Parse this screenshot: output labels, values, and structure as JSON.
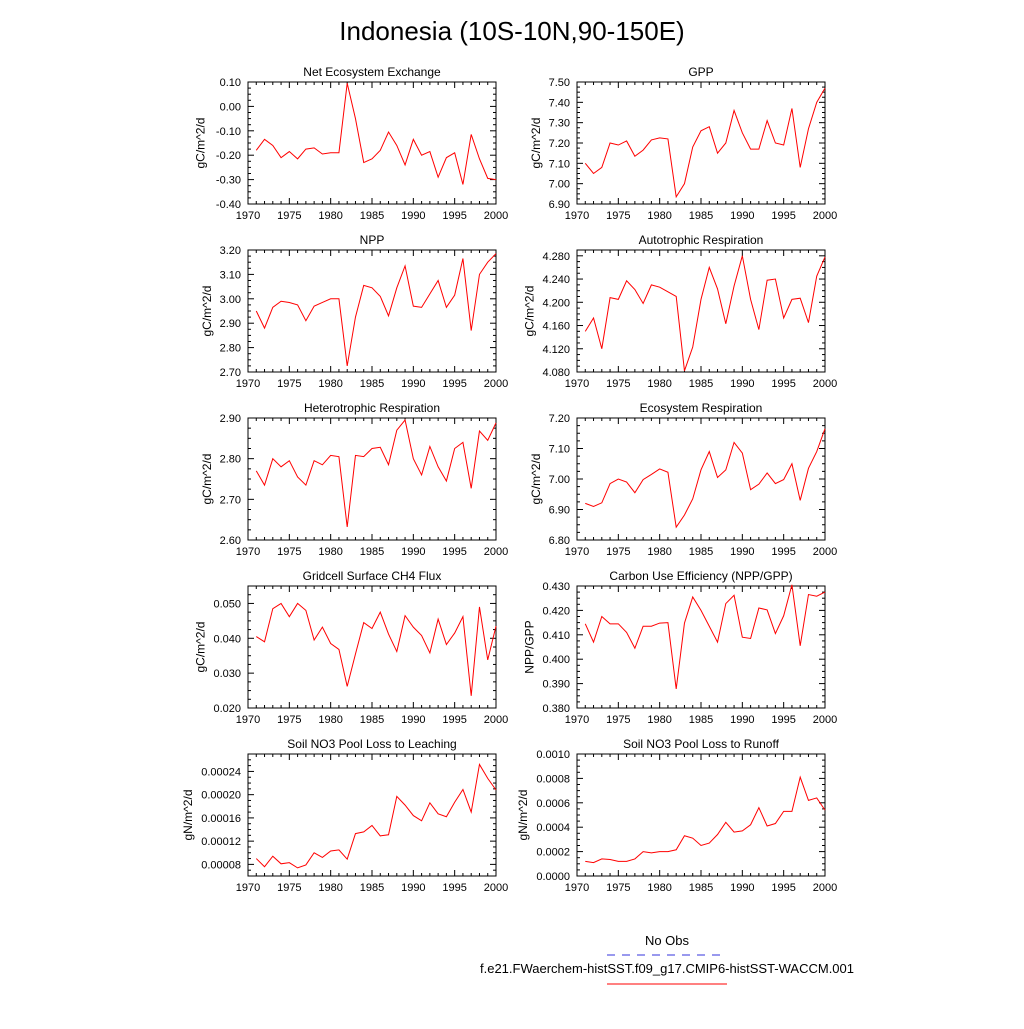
{
  "title": "Indonesia (10S-10N,90-150E)",
  "line_color": "#ff0000",
  "legend": {
    "entries": [
      {
        "label": "No Obs",
        "color": "#3333dd",
        "dashed": true
      },
      {
        "label": "f.e21.FWaerchem-histSST.f09_g17.CMIP6-histSST-WACCM.001",
        "color": "#ff0000",
        "dashed": false
      }
    ]
  },
  "chart_data": [
    {
      "type": "line",
      "title": "Net Ecosystem Exchange",
      "ylabel": "gC/m^2/d",
      "xlim": [
        1970,
        2000
      ],
      "xticks": [
        1970,
        1975,
        1980,
        1985,
        1990,
        1995,
        2000
      ],
      "ylim": [
        -0.4,
        0.1
      ],
      "yticks": [
        "-0.40",
        "-0.30",
        "-0.20",
        "-0.10",
        "0.00",
        "0.10"
      ],
      "x": [
        1971,
        1972,
        1973,
        1974,
        1975,
        1976,
        1977,
        1978,
        1979,
        1980,
        1981,
        1982,
        1983,
        1984,
        1985,
        1986,
        1987,
        1988,
        1989,
        1990,
        1991,
        1992,
        1993,
        1994,
        1995,
        1996,
        1997,
        1998,
        1999,
        2000
      ],
      "series": [
        {
          "values": [
            -0.18,
            -0.135,
            -0.16,
            -0.21,
            -0.185,
            -0.215,
            -0.175,
            -0.17,
            -0.195,
            -0.19,
            -0.19,
            0.095,
            -0.05,
            -0.23,
            -0.215,
            -0.18,
            -0.105,
            -0.16,
            -0.24,
            -0.135,
            -0.2,
            -0.185,
            -0.29,
            -0.21,
            -0.19,
            -0.32,
            -0.115,
            -0.215,
            -0.295,
            -0.3
          ]
        }
      ]
    },
    {
      "type": "line",
      "title": "GPP",
      "ylabel": "gC/m^2/d",
      "xlim": [
        1970,
        2000
      ],
      "xticks": [
        1970,
        1975,
        1980,
        1985,
        1990,
        1995,
        2000
      ],
      "ylim": [
        6.9,
        7.5
      ],
      "yticks": [
        "6.90",
        "7.00",
        "7.10",
        "7.20",
        "7.30",
        "7.40",
        "7.50"
      ],
      "x": [
        1971,
        1972,
        1973,
        1974,
        1975,
        1976,
        1977,
        1978,
        1979,
        1980,
        1981,
        1982,
        1983,
        1984,
        1985,
        1986,
        1987,
        1988,
        1989,
        1990,
        1991,
        1992,
        1993,
        1994,
        1995,
        1996,
        1997,
        1998,
        1999,
        2000
      ],
      "series": [
        {
          "values": [
            7.1,
            7.05,
            7.08,
            7.2,
            7.19,
            7.21,
            7.135,
            7.165,
            7.215,
            7.225,
            7.22,
            6.935,
            7.0,
            7.18,
            7.26,
            7.28,
            7.15,
            7.2,
            7.36,
            7.25,
            7.17,
            7.17,
            7.31,
            7.2,
            7.19,
            7.37,
            7.08,
            7.27,
            7.4,
            7.47
          ]
        }
      ]
    },
    {
      "type": "line",
      "title": "NPP",
      "ylabel": "gC/m^2/d",
      "xlim": [
        1970,
        2000
      ],
      "xticks": [
        1970,
        1975,
        1980,
        1985,
        1990,
        1995,
        2000
      ],
      "ylim": [
        2.7,
        3.2
      ],
      "yticks": [
        "2.70",
        "2.80",
        "2.90",
        "3.00",
        "3.10",
        "3.20"
      ],
      "x": [
        1971,
        1972,
        1973,
        1974,
        1975,
        1976,
        1977,
        1978,
        1979,
        1980,
        1981,
        1982,
        1983,
        1984,
        1985,
        1986,
        1987,
        1988,
        1989,
        1990,
        1991,
        1992,
        1993,
        1994,
        1995,
        1996,
        1997,
        1998,
        1999,
        2000
      ],
      "series": [
        {
          "values": [
            2.95,
            2.88,
            2.965,
            2.99,
            2.985,
            2.975,
            2.91,
            2.97,
            2.985,
            3.0,
            3.0,
            2.725,
            2.925,
            3.055,
            3.045,
            3.01,
            2.93,
            3.045,
            3.135,
            2.97,
            2.965,
            3.02,
            3.075,
            2.965,
            3.015,
            3.165,
            2.87,
            3.1,
            3.15,
            3.185
          ]
        }
      ]
    },
    {
      "type": "line",
      "title": "Autotrophic Respiration",
      "ylabel": "gC/m^2/d",
      "xlim": [
        1970,
        2000
      ],
      "xticks": [
        1970,
        1975,
        1980,
        1985,
        1990,
        1995,
        2000
      ],
      "ylim": [
        4.08,
        4.29
      ],
      "yticks": [
        "4.080",
        "4.120",
        "4.160",
        "4.200",
        "4.240",
        "4.280"
      ],
      "x": [
        1971,
        1972,
        1973,
        1974,
        1975,
        1976,
        1977,
        1978,
        1979,
        1980,
        1981,
        1982,
        1983,
        1984,
        1985,
        1986,
        1987,
        1988,
        1989,
        1990,
        1991,
        1992,
        1993,
        1994,
        1995,
        1996,
        1997,
        1998,
        1999,
        2000
      ],
      "series": [
        {
          "values": [
            4.15,
            4.173,
            4.12,
            4.208,
            4.205,
            4.237,
            4.222,
            4.198,
            4.23,
            4.226,
            4.218,
            4.21,
            4.082,
            4.123,
            4.205,
            4.26,
            4.223,
            4.163,
            4.228,
            4.28,
            4.205,
            4.153,
            4.238,
            4.24,
            4.173,
            4.205,
            4.207,
            4.165,
            4.245,
            4.278
          ]
        }
      ]
    },
    {
      "type": "line",
      "title": "Heterotrophic Respiration",
      "ylabel": "gC/m^2/d",
      "xlim": [
        1970,
        2000
      ],
      "xticks": [
        1970,
        1975,
        1980,
        1985,
        1990,
        1995,
        2000
      ],
      "ylim": [
        2.6,
        2.9
      ],
      "yticks": [
        "2.60",
        "2.70",
        "2.80",
        "2.90"
      ],
      "x": [
        1971,
        1972,
        1973,
        1974,
        1975,
        1976,
        1977,
        1978,
        1979,
        1980,
        1981,
        1982,
        1983,
        1984,
        1985,
        1986,
        1987,
        1988,
        1989,
        1990,
        1991,
        1992,
        1993,
        1994,
        1995,
        1996,
        1997,
        1998,
        1999,
        2000
      ],
      "series": [
        {
          "values": [
            2.77,
            2.735,
            2.8,
            2.78,
            2.795,
            2.755,
            2.735,
            2.795,
            2.785,
            2.808,
            2.805,
            2.632,
            2.808,
            2.805,
            2.825,
            2.828,
            2.785,
            2.87,
            2.895,
            2.8,
            2.76,
            2.83,
            2.78,
            2.745,
            2.825,
            2.84,
            2.727,
            2.868,
            2.845,
            2.888
          ]
        }
      ]
    },
    {
      "type": "line",
      "title": "Ecosystem Respiration",
      "ylabel": "gC/m^2/d",
      "xlim": [
        1970,
        2000
      ],
      "xticks": [
        1970,
        1975,
        1980,
        1985,
        1990,
        1995,
        2000
      ],
      "ylim": [
        6.8,
        7.2
      ],
      "yticks": [
        "6.80",
        "6.90",
        "7.00",
        "7.10",
        "7.20"
      ],
      "x": [
        1971,
        1972,
        1973,
        1974,
        1975,
        1976,
        1977,
        1978,
        1979,
        1980,
        1981,
        1982,
        1983,
        1984,
        1985,
        1986,
        1987,
        1988,
        1989,
        1990,
        1991,
        1992,
        1993,
        1994,
        1995,
        1996,
        1997,
        1998,
        1999,
        2000
      ],
      "series": [
        {
          "values": [
            6.92,
            6.91,
            6.922,
            6.985,
            7.0,
            6.99,
            6.955,
            6.998,
            7.015,
            7.033,
            7.022,
            6.842,
            6.882,
            6.935,
            7.03,
            7.09,
            7.005,
            7.03,
            7.12,
            7.085,
            6.965,
            6.983,
            7.02,
            6.985,
            6.998,
            7.05,
            6.93,
            7.035,
            7.09,
            7.165
          ]
        }
      ]
    },
    {
      "type": "line",
      "title": "Gridcell Surface CH4 Flux",
      "ylabel": "gC/m^2/d",
      "xlim": [
        1970,
        2000
      ],
      "xticks": [
        1970,
        1975,
        1980,
        1985,
        1990,
        1995,
        2000
      ],
      "ylim": [
        0.02,
        0.055
      ],
      "yticks": [
        "0.020",
        "0.030",
        "0.040",
        "0.050"
      ],
      "x": [
        1971,
        1972,
        1973,
        1974,
        1975,
        1976,
        1977,
        1978,
        1979,
        1980,
        1981,
        1982,
        1983,
        1984,
        1985,
        1986,
        1987,
        1988,
        1989,
        1990,
        1991,
        1992,
        1993,
        1994,
        1995,
        1996,
        1997,
        1998,
        1999,
        2000
      ],
      "series": [
        {
          "values": [
            0.0405,
            0.039,
            0.0485,
            0.05,
            0.0462,
            0.05,
            0.048,
            0.0395,
            0.0432,
            0.0385,
            0.0368,
            0.0262,
            0.0355,
            0.0445,
            0.0428,
            0.0475,
            0.0412,
            0.0362,
            0.0465,
            0.0432,
            0.0408,
            0.0358,
            0.0455,
            0.0382,
            0.0415,
            0.0462,
            0.0235,
            0.049,
            0.0338,
            0.0435
          ]
        }
      ]
    },
    {
      "type": "line",
      "title": "Carbon Use Efficiency (NPP/GPP)",
      "ylabel": "NPP/GPP",
      "xlim": [
        1970,
        2000
      ],
      "xticks": [
        1970,
        1975,
        1980,
        1985,
        1990,
        1995,
        2000
      ],
      "ylim": [
        0.38,
        0.43
      ],
      "yticks": [
        "0.380",
        "0.390",
        "0.400",
        "0.410",
        "0.420",
        "0.430"
      ],
      "x": [
        1971,
        1972,
        1973,
        1974,
        1975,
        1976,
        1977,
        1978,
        1979,
        1980,
        1981,
        1982,
        1983,
        1984,
        1985,
        1986,
        1987,
        1988,
        1989,
        1990,
        1991,
        1992,
        1993,
        1994,
        1995,
        1996,
        1997,
        1998,
        1999,
        2000
      ],
      "series": [
        {
          "values": [
            0.4145,
            0.407,
            0.4175,
            0.4145,
            0.4145,
            0.411,
            0.4045,
            0.4135,
            0.4135,
            0.4148,
            0.415,
            0.3878,
            0.4148,
            0.4255,
            0.42,
            0.4135,
            0.407,
            0.4228,
            0.4262,
            0.409,
            0.4085,
            0.421,
            0.4202,
            0.4105,
            0.4178,
            0.4305,
            0.4055,
            0.4265,
            0.4258,
            0.4275
          ]
        }
      ]
    },
    {
      "type": "line",
      "title": "Soil NO3 Pool Loss to Leaching",
      "ylabel": "gN/m^2/d",
      "xlim": [
        1970,
        2000
      ],
      "xticks": [
        1970,
        1975,
        1980,
        1985,
        1990,
        1995,
        2000
      ],
      "ylim": [
        6e-05,
        0.00027
      ],
      "yticks": [
        "0.00008",
        "0.00012",
        "0.00016",
        "0.00020",
        "0.00024"
      ],
      "x": [
        1971,
        1972,
        1973,
        1974,
        1975,
        1976,
        1977,
        1978,
        1979,
        1980,
        1981,
        1982,
        1983,
        1984,
        1985,
        1986,
        1987,
        1988,
        1989,
        1990,
        1991,
        1992,
        1993,
        1994,
        1995,
        1996,
        1997,
        1998,
        1999,
        2000
      ],
      "series": [
        {
          "values": [
            9e-05,
            7.6e-05,
            9.4e-05,
            8.1e-05,
            8.3e-05,
            7.4e-05,
            7.9e-05,
            0.0001,
            9.2e-05,
            0.000103,
            0.000105,
            8.9e-05,
            0.000133,
            0.000136,
            0.000147,
            0.000129,
            0.000131,
            0.000197,
            0.000182,
            0.000164,
            0.000155,
            0.000186,
            0.000167,
            0.000162,
            0.000187,
            0.000209,
            0.00017,
            0.000252,
            0.000228,
            0.000208
          ]
        }
      ]
    },
    {
      "type": "line",
      "title": "Soil NO3 Pool Loss to Runoff",
      "ylabel": "gN/m^2/d",
      "xlim": [
        1970,
        2000
      ],
      "xticks": [
        1970,
        1975,
        1980,
        1985,
        1990,
        1995,
        2000
      ],
      "ylim": [
        0,
        0.001
      ],
      "yticks": [
        "0.0000",
        "0.0002",
        "0.0004",
        "0.0006",
        "0.0008",
        "0.0010"
      ],
      "x": [
        1971,
        1972,
        1973,
        1974,
        1975,
        1976,
        1977,
        1978,
        1979,
        1980,
        1981,
        1982,
        1983,
        1984,
        1985,
        1986,
        1987,
        1988,
        1989,
        1990,
        1991,
        1992,
        1993,
        1994,
        1995,
        1996,
        1997,
        1998,
        1999,
        2000
      ],
      "series": [
        {
          "values": [
            0.00012,
            0.00011,
            0.00014,
            0.000135,
            0.00012,
            0.00012,
            0.00014,
            0.0002,
            0.00019,
            0.0002,
            0.0002,
            0.000215,
            0.00033,
            0.00031,
            0.00025,
            0.00027,
            0.00034,
            0.00044,
            0.00036,
            0.00037,
            0.00042,
            0.00056,
            0.00041,
            0.00043,
            0.00053,
            0.00053,
            0.00081,
            0.00062,
            0.00064,
            0.00054
          ]
        }
      ]
    }
  ]
}
